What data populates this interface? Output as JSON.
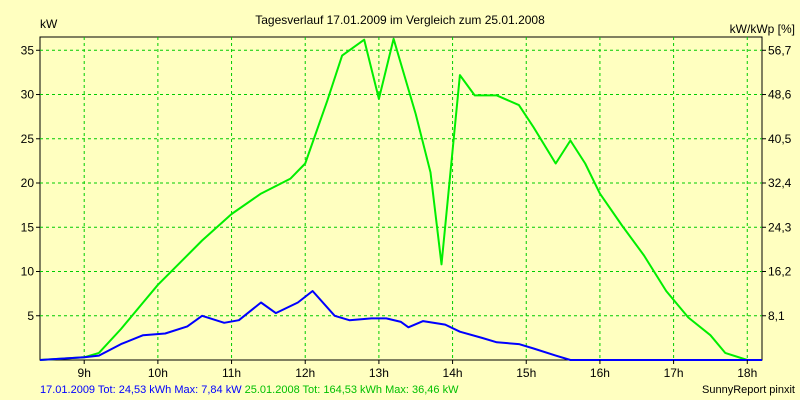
{
  "chart_data": {
    "type": "line",
    "title": "Tagesverlauf 17.01.2009 im Vergleich zum 25.01.2008",
    "ylabel_left": "kW",
    "ylabel_right": "kW/kWp [%]",
    "xlim": [
      8.4,
      18.2
    ],
    "ylim": [
      0,
      36.5
    ],
    "x_ticks": [
      9,
      10,
      11,
      12,
      13,
      14,
      15,
      16,
      17,
      18
    ],
    "x_tick_labels": [
      "9h",
      "10h",
      "11h",
      "12h",
      "13h",
      "14h",
      "15h",
      "16h",
      "17h",
      "18h"
    ],
    "y_ticks": [
      5,
      10,
      15,
      20,
      25,
      30,
      35
    ],
    "y_right_ticks": [
      {
        "y": 5,
        "label": "8,1"
      },
      {
        "y": 10,
        "label": "16,2"
      },
      {
        "y": 15,
        "label": "24,3"
      },
      {
        "y": 20,
        "label": "32,4"
      },
      {
        "y": 25,
        "label": "40,5"
      },
      {
        "y": 30,
        "label": "48,6"
      },
      {
        "y": 35,
        "label": "56,7"
      }
    ],
    "grid": true,
    "series": [
      {
        "color": "#00ee00",
        "points": [
          [
            8.4,
            0
          ],
          [
            9.0,
            0.3
          ],
          [
            9.2,
            0.8
          ],
          [
            9.5,
            3.5
          ],
          [
            9.8,
            6.5
          ],
          [
            10.0,
            8.5
          ],
          [
            10.3,
            11
          ],
          [
            10.6,
            13.5
          ],
          [
            11.0,
            16.5
          ],
          [
            11.4,
            18.8
          ],
          [
            11.8,
            20.5
          ],
          [
            12.0,
            22.2
          ],
          [
            12.3,
            29.3
          ],
          [
            12.5,
            34.4
          ],
          [
            12.8,
            36.2
          ],
          [
            13.0,
            29.5
          ],
          [
            13.2,
            36.3
          ],
          [
            13.5,
            27.8
          ],
          [
            13.7,
            21.2
          ],
          [
            13.85,
            10.8
          ],
          [
            14.1,
            32.2
          ],
          [
            14.3,
            29.9
          ],
          [
            14.6,
            29.9
          ],
          [
            14.9,
            28.8
          ],
          [
            15.1,
            26.3
          ],
          [
            15.4,
            22.2
          ],
          [
            15.6,
            24.8
          ],
          [
            15.8,
            22.2
          ],
          [
            16.0,
            18.8
          ],
          [
            16.3,
            15.2
          ],
          [
            16.6,
            11.8
          ],
          [
            16.9,
            7.8
          ],
          [
            17.2,
            4.8
          ],
          [
            17.5,
            2.8
          ],
          [
            17.7,
            0.8
          ],
          [
            18.0,
            0
          ],
          [
            18.2,
            0
          ]
        ]
      },
      {
        "color": "#0000ff",
        "points": [
          [
            8.4,
            0
          ],
          [
            9.0,
            0.3
          ],
          [
            9.2,
            0.5
          ],
          [
            9.5,
            1.8
          ],
          [
            9.8,
            2.8
          ],
          [
            10.1,
            3.0
          ],
          [
            10.4,
            3.8
          ],
          [
            10.6,
            5.0
          ],
          [
            10.9,
            4.2
          ],
          [
            11.1,
            4.5
          ],
          [
            11.4,
            6.5
          ],
          [
            11.6,
            5.3
          ],
          [
            11.9,
            6.5
          ],
          [
            12.1,
            7.8
          ],
          [
            12.4,
            5.0
          ],
          [
            12.6,
            4.5
          ],
          [
            12.9,
            4.7
          ],
          [
            13.1,
            4.7
          ],
          [
            13.3,
            4.3
          ],
          [
            13.4,
            3.7
          ],
          [
            13.6,
            4.4
          ],
          [
            13.9,
            4.0
          ],
          [
            14.1,
            3.2
          ],
          [
            14.4,
            2.5
          ],
          [
            14.6,
            2.0
          ],
          [
            14.9,
            1.8
          ],
          [
            15.1,
            1.3
          ],
          [
            15.4,
            0.5
          ],
          [
            15.6,
            0
          ],
          [
            18.2,
            0
          ]
        ]
      }
    ]
  },
  "footer": {
    "blue_text": "17.01.2009 Tot: 24,53 kWh Max: 7,84 kW",
    "green_text": "25.01.2008 Tot: 164,53 kWh Max: 36,46 kW",
    "credit": "SunnyReport pinxit"
  }
}
